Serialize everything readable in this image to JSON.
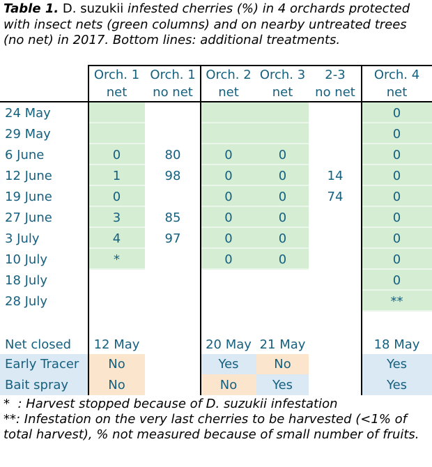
{
  "caption": {
    "bold_label": "Table 1.",
    "species": "D. suzukii",
    "rest": "infested cherries (%) in 4 orchards protected with insect nets (green columns) and on nearby untreated trees (no net) in 2017. Bottom lines: additional treatments."
  },
  "table": {
    "column_headers": [
      {
        "line1": "Orch. 1",
        "line2": "net"
      },
      {
        "line1": "Orch. 1",
        "line2": "no net"
      },
      {
        "line1": "Orch. 2",
        "line2": "net"
      },
      {
        "line1": "Orch. 3",
        "line2": "net"
      },
      {
        "line1": "2-3",
        "line2": "no net"
      },
      {
        "line1": "Orch. 4",
        "line2": "net"
      }
    ],
    "rows": [
      {
        "date": "24 May",
        "values": [
          "",
          "",
          "",
          "",
          "",
          "0"
        ],
        "shaded": [
          true,
          false,
          true,
          true,
          false,
          true
        ]
      },
      {
        "date": "29 May",
        "values": [
          "",
          "",
          "",
          "",
          "",
          "0"
        ],
        "shaded": [
          true,
          false,
          true,
          true,
          false,
          true
        ]
      },
      {
        "date": "6 June",
        "values": [
          "0",
          "80",
          "0",
          "0",
          "",
          "0"
        ],
        "shaded": [
          true,
          false,
          true,
          true,
          false,
          true
        ]
      },
      {
        "date": "12 June",
        "values": [
          "1",
          "98",
          "0",
          "0",
          "14",
          "0"
        ],
        "shaded": [
          true,
          false,
          true,
          true,
          false,
          true
        ]
      },
      {
        "date": "19 June",
        "values": [
          "0",
          "",
          "0",
          "0",
          "74",
          "0"
        ],
        "shaded": [
          true,
          false,
          true,
          true,
          false,
          true
        ]
      },
      {
        "date": "27 June",
        "values": [
          "3",
          "85",
          "0",
          "0",
          "",
          "0"
        ],
        "shaded": [
          true,
          false,
          true,
          true,
          false,
          true
        ]
      },
      {
        "date": "3 July",
        "values": [
          "4",
          "97",
          "0",
          "0",
          "",
          "0"
        ],
        "shaded": [
          true,
          false,
          true,
          true,
          false,
          true
        ]
      },
      {
        "date": "10 July",
        "values": [
          "*",
          "",
          "0",
          "0",
          "",
          "0"
        ],
        "shaded": [
          true,
          false,
          true,
          true,
          false,
          true
        ]
      },
      {
        "date": "18 July",
        "values": [
          "",
          "",
          "",
          "",
          "",
          "0"
        ],
        "shaded": [
          false,
          false,
          false,
          false,
          false,
          true
        ]
      },
      {
        "date": "28 July",
        "values": [
          "",
          "",
          "",
          "",
          "",
          "**"
        ],
        "shaded": [
          false,
          false,
          false,
          false,
          false,
          true
        ]
      }
    ],
    "treatment_rows": [
      {
        "label": "Net closed",
        "label_shaded": false,
        "values": [
          "12 May",
          "",
          "20 May",
          "21 May",
          "",
          "18 May"
        ],
        "cell_styles": [
          "none",
          "none",
          "none",
          "none",
          "none",
          "none"
        ]
      },
      {
        "label": "Early Tracer",
        "label_shaded": true,
        "values": [
          "No",
          "",
          "Yes",
          "No",
          "",
          "Yes"
        ],
        "cell_styles": [
          "no",
          "none",
          "yes",
          "no",
          "none",
          "yes"
        ]
      },
      {
        "label": "Bait spray",
        "label_shaded": true,
        "values": [
          "No",
          "",
          "No",
          "Yes",
          "",
          "Yes"
        ],
        "cell_styles": [
          "no",
          "none",
          "no",
          "yes",
          "none",
          "yes"
        ]
      }
    ]
  },
  "footnotes": [
    "*  : Harvest stopped because of D. suzukii infestation",
    "**: Infestation on the very last cherries to be harvested (<1% of total harvest), % not measured because of small number of fruits."
  ],
  "colors": {
    "net_green": "#d5edd3",
    "treatment_yes_blue": "#dbe9f5",
    "treatment_no_orange": "#fbe5cd",
    "row_label_blue": "#dbe9f5",
    "table_text_teal": "#15607f",
    "border_black": "#000000"
  }
}
